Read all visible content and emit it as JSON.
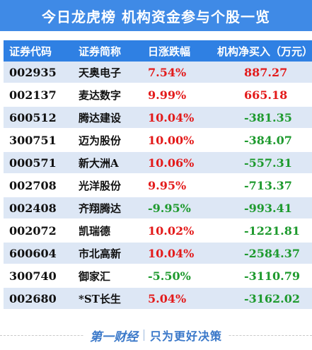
{
  "title": "今日龙虎榜  机构资金参与个股一览",
  "columns": {
    "code": "证券代码",
    "name": "证券简称",
    "change": "日涨跌幅",
    "net_buy": "机构净买入（万元）"
  },
  "rows": [
    {
      "code": "002935",
      "name": "天奥电子",
      "change": "7.54%",
      "net_buy": "887.27",
      "change_color": "red",
      "net_color": "red"
    },
    {
      "code": "002137",
      "name": "麦达数字",
      "change": "9.99%",
      "net_buy": "665.18",
      "change_color": "red",
      "net_color": "red"
    },
    {
      "code": "600512",
      "name": "腾达建设",
      "change": "10.04%",
      "net_buy": "-381.35",
      "change_color": "red",
      "net_color": "green"
    },
    {
      "code": "300751",
      "name": "迈为股份",
      "change": "10.00%",
      "net_buy": "-384.07",
      "change_color": "red",
      "net_color": "green"
    },
    {
      "code": "000571",
      "name": "新大洲A",
      "change": "10.06%",
      "net_buy": "-557.31",
      "change_color": "red",
      "net_color": "green"
    },
    {
      "code": "002708",
      "name": "光洋股份",
      "change": "9.95%",
      "net_buy": "-713.37",
      "change_color": "red",
      "net_color": "green"
    },
    {
      "code": "002408",
      "name": "齐翔腾达",
      "change": "-9.95%",
      "net_buy": "-993.41",
      "change_color": "green",
      "net_color": "green"
    },
    {
      "code": "002072",
      "name": "凯瑞德",
      "change": "10.02%",
      "net_buy": "-1221.81",
      "change_color": "red",
      "net_color": "green"
    },
    {
      "code": "600604",
      "name": "市北高新",
      "change": "10.04%",
      "net_buy": "-2584.37",
      "change_color": "red",
      "net_color": "green"
    },
    {
      "code": "300740",
      "name": "御家汇",
      "change": "-5.50%",
      "net_buy": "-3110.79",
      "change_color": "green",
      "net_color": "green"
    },
    {
      "code": "002680",
      "name": "*ST长生",
      "change": "5.04%",
      "net_buy": "-3162.02",
      "change_color": "red",
      "net_color": "green"
    }
  ],
  "footer": {
    "logo": "第一财经",
    "slogan": "只为更好决策"
  },
  "colors": {
    "header_blue": "#3f8ae6",
    "row_shade": "#dde7f5",
    "positive_red": "#e31b1b",
    "negative_green": "#1e9a2e"
  }
}
